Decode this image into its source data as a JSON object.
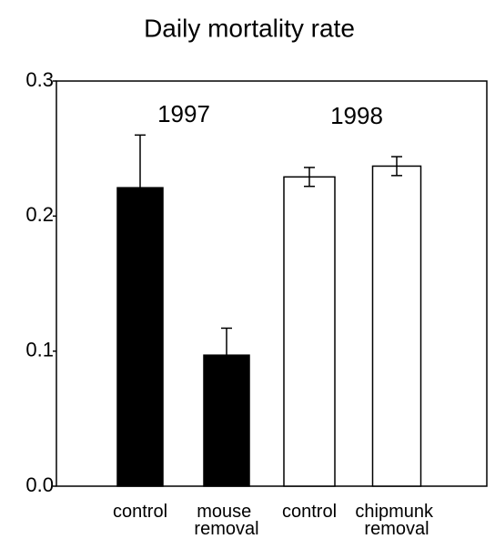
{
  "chart_data": {
    "type": "bar",
    "title": "Daily mortality rate",
    "categories": [
      "control",
      "mouse removal",
      "control",
      "chipmunk removal"
    ],
    "values": [
      0.221,
      0.097,
      0.229,
      0.237
    ],
    "errors": [
      0.039,
      0.02,
      0.007,
      0.007
    ],
    "colors": [
      "#000000",
      "#000000",
      "#ffffff",
      "#ffffff"
    ],
    "annotations": [
      "1997",
      "1998"
    ],
    "ylim": [
      0,
      0.3
    ],
    "yticks": [
      {
        "value": 0,
        "label": "0.0"
      },
      0.1,
      0.2,
      0.3
    ],
    "grid": false
  }
}
